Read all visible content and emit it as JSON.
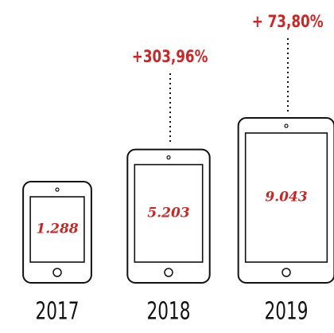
{
  "chart_data": {
    "type": "pictogram",
    "categories": [
      "2017",
      "2018",
      "2019"
    ],
    "values": [
      1288,
      5203,
      9043
    ],
    "value_labels": [
      "1.288",
      "5.203",
      "9.043"
    ],
    "growth_labels": [
      null,
      "+303,96%",
      "+ 73,80%"
    ],
    "color": "#c62828"
  }
}
